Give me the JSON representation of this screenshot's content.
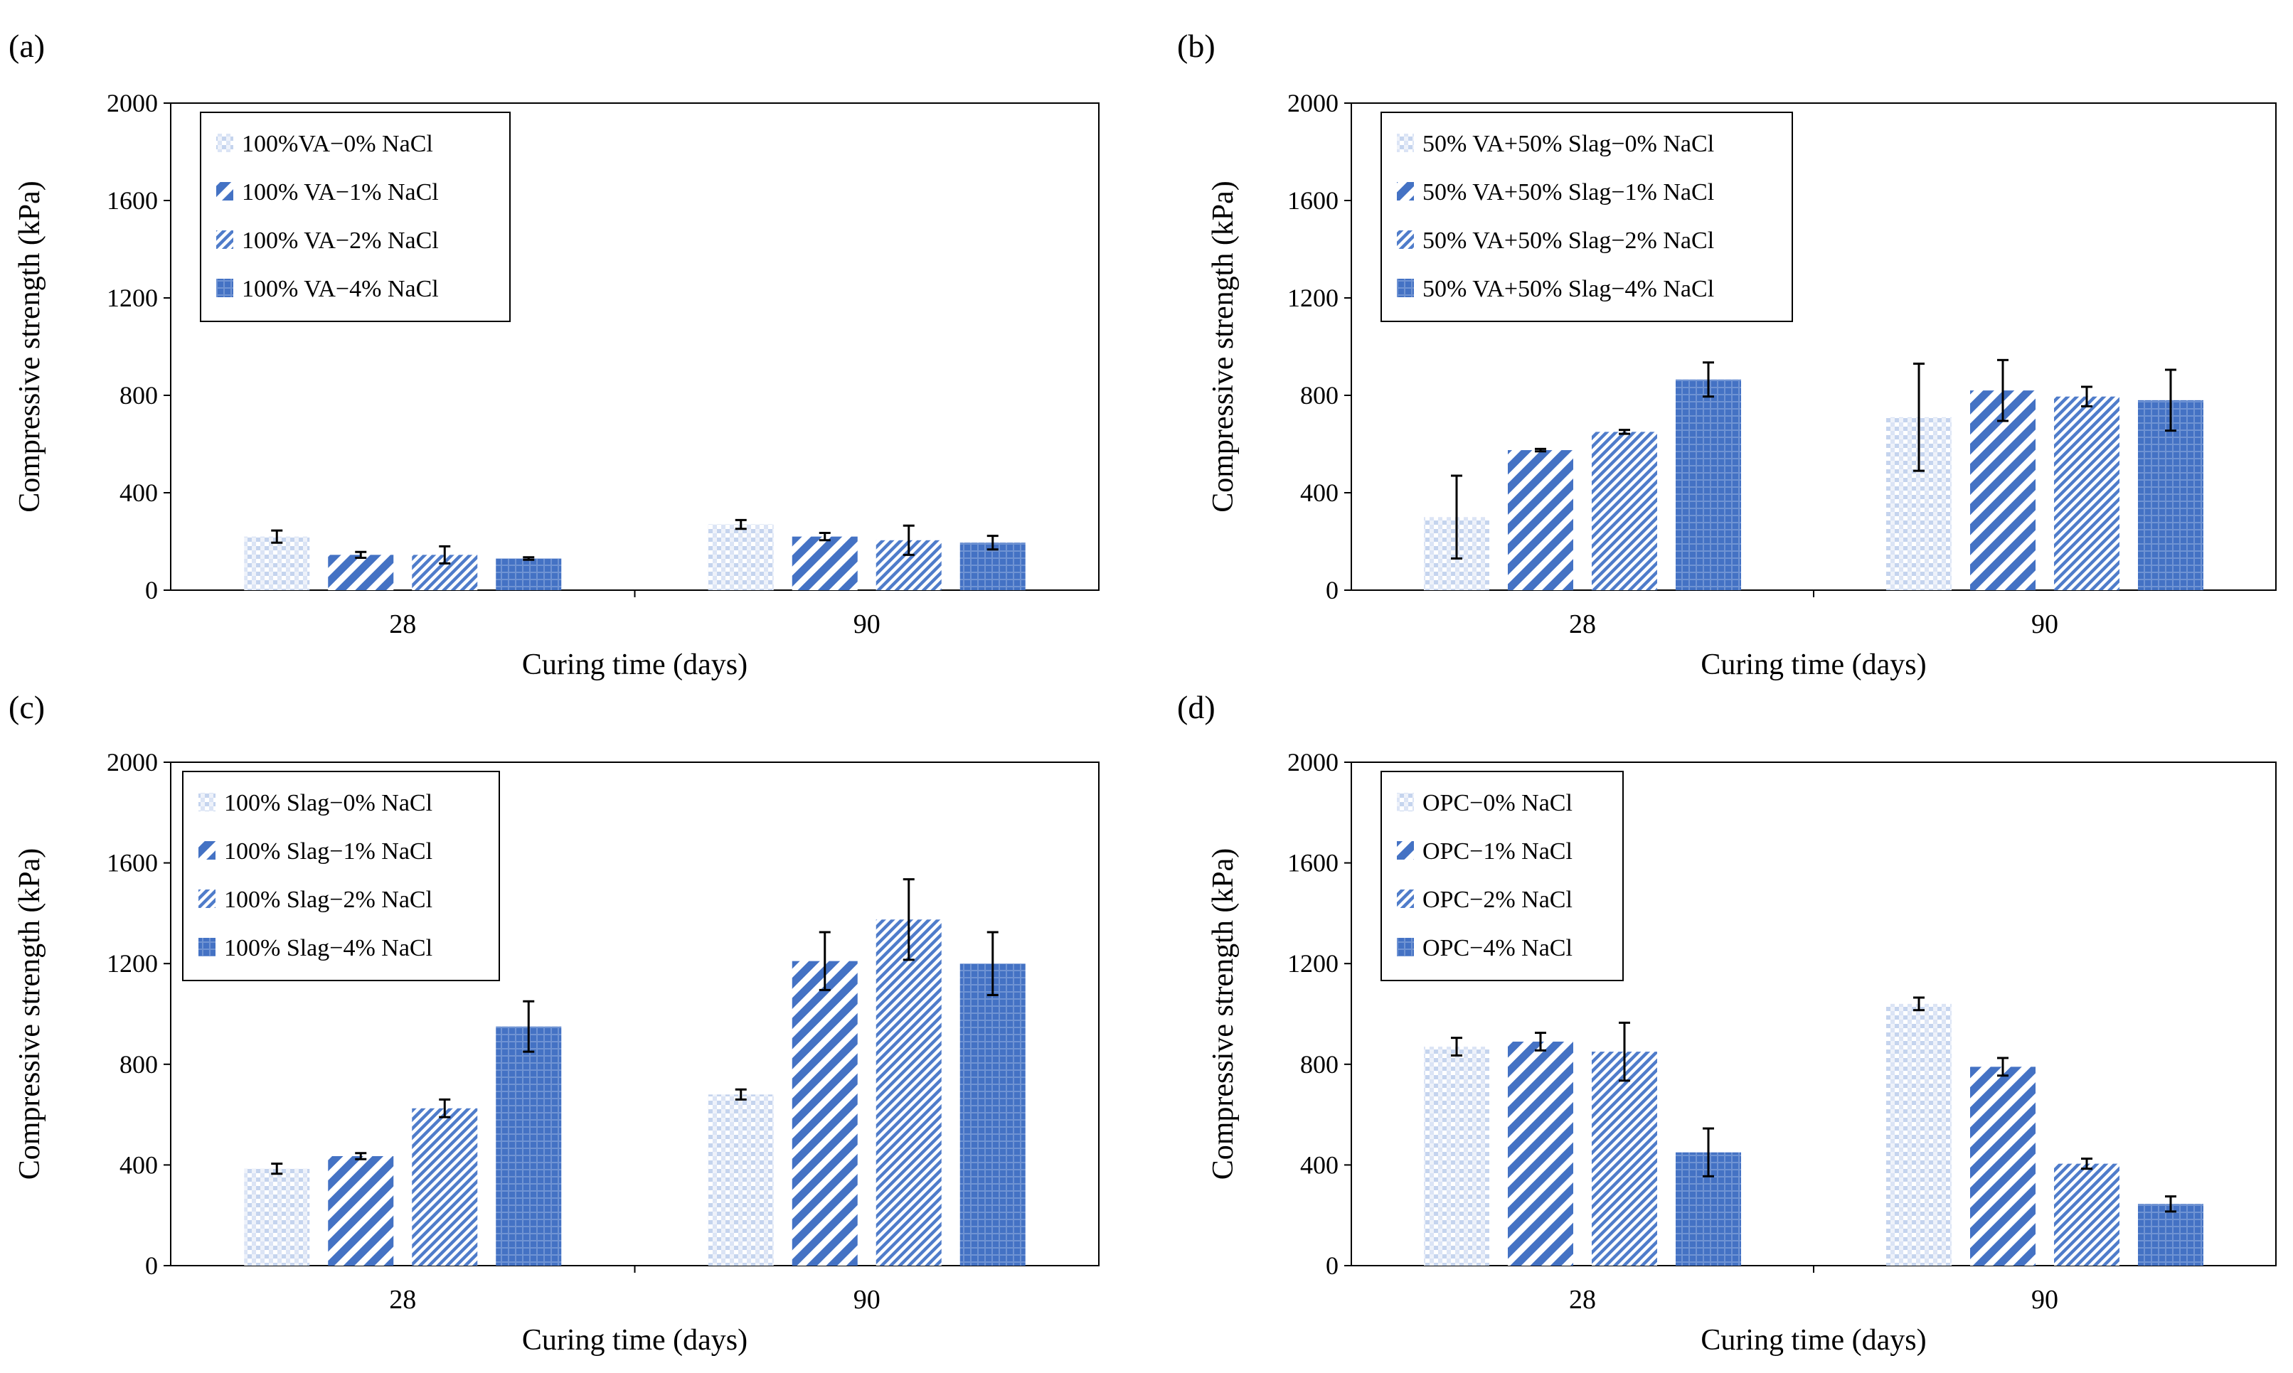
{
  "figure": {
    "panels": [
      "a",
      "b",
      "c",
      "d"
    ]
  },
  "colors": {
    "bar_base": "#4472c4",
    "light_pattern": "#c5d4ee",
    "axis": "#000000",
    "error_bar": "#000000",
    "background": "#ffffff"
  },
  "chart_data": [
    {
      "panel_label": "(a)",
      "type": "bar",
      "categories": [
        "28",
        "90"
      ],
      "xlabel": "Curing time (days)",
      "ylabel": "Compressive strength (kPa)",
      "ylim": [
        0,
        2000
      ],
      "yticks": [
        0,
        400,
        800,
        1200,
        1600,
        2000
      ],
      "legend_position": "top-left",
      "series": [
        {
          "name": "100%VA−0% NaCl",
          "pattern": "dots",
          "values": [
            220,
            270
          ],
          "errors": [
            25,
            18
          ]
        },
        {
          "name": "100% VA−1% NaCl",
          "pattern": "diag",
          "values": [
            145,
            220
          ],
          "errors": [
            12,
            15
          ]
        },
        {
          "name": "100% VA−2% NaCl",
          "pattern": "diag-fine",
          "values": [
            145,
            205
          ],
          "errors": [
            35,
            60
          ]
        },
        {
          "name": "100% VA−4% NaCl",
          "pattern": "dense",
          "values": [
            130,
            195
          ],
          "errors": [
            5,
            28
          ]
        }
      ]
    },
    {
      "panel_label": "(b)",
      "type": "bar",
      "categories": [
        "28",
        "90"
      ],
      "xlabel": "Curing time (days)",
      "ylabel": "Compressive strength (kPa)",
      "ylim": [
        0,
        2000
      ],
      "yticks": [
        0,
        400,
        800,
        1200,
        1600,
        2000
      ],
      "legend_position": "top-left",
      "series": [
        {
          "name": "50% VA+50% Slag−0% NaCl",
          "pattern": "dots",
          "values": [
            300,
            710
          ],
          "errors": [
            170,
            220
          ]
        },
        {
          "name": "50% VA+50% Slag−1% NaCl",
          "pattern": "diag",
          "values": [
            575,
            820
          ],
          "errors": [
            5,
            125
          ]
        },
        {
          "name": "50% VA+50% Slag−2% NaCl",
          "pattern": "diag-fine",
          "values": [
            650,
            795
          ],
          "errors": [
            8,
            40
          ]
        },
        {
          "name": "50% VA+50% Slag−4% NaCl",
          "pattern": "dense",
          "values": [
            865,
            780
          ],
          "errors": [
            70,
            125
          ]
        }
      ]
    },
    {
      "panel_label": "(c)",
      "type": "bar",
      "categories": [
        "28",
        "90"
      ],
      "xlabel": "Curing time (days)",
      "ylabel": "Compressive strength (kPa)",
      "ylim": [
        0,
        2000
      ],
      "yticks": [
        0,
        400,
        800,
        1200,
        1600,
        2000
      ],
      "legend_position": "top-left",
      "series": [
        {
          "name": "100% Slag−0% NaCl",
          "pattern": "dots",
          "values": [
            385,
            680
          ],
          "errors": [
            20,
            20
          ]
        },
        {
          "name": "100% Slag−1% NaCl",
          "pattern": "diag",
          "values": [
            435,
            1210
          ],
          "errors": [
            12,
            115
          ]
        },
        {
          "name": "100% Slag−2% NaCl",
          "pattern": "diag-fine",
          "values": [
            625,
            1375
          ],
          "errors": [
            35,
            160
          ]
        },
        {
          "name": "100% Slag−4% NaCl",
          "pattern": "dense",
          "values": [
            950,
            1200
          ],
          "errors": [
            100,
            125
          ]
        }
      ]
    },
    {
      "panel_label": "(d)",
      "type": "bar",
      "categories": [
        "28",
        "90"
      ],
      "xlabel": "Curing time (days)",
      "ylabel": "Compressive strength (kPa)",
      "ylim": [
        0,
        2000
      ],
      "yticks": [
        0,
        400,
        800,
        1200,
        1600,
        2000
      ],
      "legend_position": "top-left",
      "series": [
        {
          "name": "OPC−0% NaCl",
          "pattern": "dots",
          "values": [
            870,
            1040
          ],
          "errors": [
            35,
            25
          ]
        },
        {
          "name": "OPC−1% NaCl",
          "pattern": "diag",
          "values": [
            890,
            790
          ],
          "errors": [
            35,
            35
          ]
        },
        {
          "name": "OPC−2% NaCl",
          "pattern": "diag-fine",
          "values": [
            850,
            405
          ],
          "errors": [
            115,
            20
          ]
        },
        {
          "name": "OPC−4% NaCl",
          "pattern": "dense",
          "values": [
            450,
            245
          ],
          "errors": [
            95,
            30
          ]
        }
      ]
    }
  ]
}
